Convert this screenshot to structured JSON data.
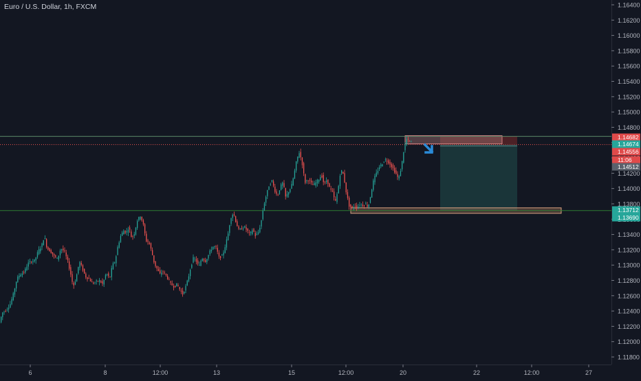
{
  "chart_data": {
    "type": "candlestick",
    "title": "Euro / U.S. Dollar, 1h, FXCM",
    "x_tick_labels": [
      "6",
      "8",
      "12:00",
      "13",
      "15",
      "12:00",
      "20",
      "22",
      "12:00",
      "27"
    ],
    "y_tick_labels": [
      "1.16400",
      "1.16200",
      "1.16000",
      "1.15800",
      "1.15600",
      "1.15400",
      "1.15200",
      "1.15000",
      "1.14800",
      "1.14600",
      "1.14400",
      "1.14200",
      "1.14000",
      "1.13800",
      "1.13600",
      "1.13400",
      "1.13200",
      "1.13000",
      "1.12800",
      "1.12600",
      "1.12400",
      "1.12200",
      "1.12000",
      "1.11800"
    ],
    "ylim": [
      1.1172,
      1.1646
    ],
    "grid": false,
    "price_path": [
      [
        0,
        1.1222
      ],
      [
        5,
        1.1238
      ],
      [
        10,
        1.1241
      ],
      [
        16,
        1.1248
      ],
      [
        21,
        1.1262
      ],
      [
        26,
        1.1282
      ],
      [
        31,
        1.1288
      ],
      [
        37,
        1.1291
      ],
      [
        42,
        1.1302
      ],
      [
        47,
        1.1305
      ],
      [
        52,
        1.1306
      ],
      [
        57,
        1.1318
      ],
      [
        62,
        1.1325
      ],
      [
        66,
        1.1338
      ],
      [
        70,
        1.1322
      ],
      [
        75,
        1.1318
      ],
      [
        80,
        1.1312
      ],
      [
        85,
        1.1308
      ],
      [
        90,
        1.1322
      ],
      [
        95,
        1.1318
      ],
      [
        100,
        1.1305
      ],
      [
        104,
        1.129
      ],
      [
        108,
        1.1272
      ],
      [
        112,
        1.1282
      ],
      [
        117,
        1.1305
      ],
      [
        121,
        1.1296
      ],
      [
        126,
        1.1285
      ],
      [
        131,
        1.1282
      ],
      [
        136,
        1.1276
      ],
      [
        141,
        1.1278
      ],
      [
        146,
        1.128
      ],
      [
        151,
        1.1275
      ],
      [
        156,
        1.129
      ],
      [
        161,
        1.1282
      ],
      [
        165,
        1.13
      ],
      [
        169,
        1.1305
      ],
      [
        173,
        1.1325
      ],
      [
        177,
        1.1338
      ],
      [
        181,
        1.1345
      ],
      [
        185,
        1.1342
      ],
      [
        189,
        1.135
      ],
      [
        193,
        1.1335
      ],
      [
        197,
        1.1342
      ],
      [
        201,
        1.1358
      ],
      [
        206,
        1.1365
      ],
      [
        210,
        1.1352
      ],
      [
        214,
        1.1332
      ],
      [
        218,
        1.133
      ],
      [
        222,
        1.1318
      ],
      [
        226,
        1.1302
      ],
      [
        230,
        1.1295
      ],
      [
        234,
        1.1288
      ],
      [
        238,
        1.1292
      ],
      [
        242,
        1.1288
      ],
      [
        246,
        1.1282
      ],
      [
        250,
        1.1275
      ],
      [
        255,
        1.1272
      ],
      [
        259,
        1.1275
      ],
      [
        263,
        1.1268
      ],
      [
        267,
        1.1262
      ],
      [
        271,
        1.127
      ],
      [
        275,
        1.1282
      ],
      [
        279,
        1.1298
      ],
      [
        283,
        1.131
      ],
      [
        287,
        1.1305
      ],
      [
        291,
        1.1298
      ],
      [
        295,
        1.131
      ],
      [
        300,
        1.1305
      ],
      [
        304,
        1.1312
      ],
      [
        308,
        1.132
      ],
      [
        312,
        1.1325
      ],
      [
        316,
        1.1322
      ],
      [
        320,
        1.131
      ],
      [
        325,
        1.1312
      ],
      [
        329,
        1.1325
      ],
      [
        333,
        1.134
      ],
      [
        337,
        1.1362
      ],
      [
        341,
        1.1368
      ],
      [
        345,
        1.1355
      ],
      [
        349,
        1.1345
      ],
      [
        353,
        1.1348
      ],
      [
        357,
        1.135
      ],
      [
        361,
        1.1345
      ],
      [
        365,
        1.134
      ],
      [
        369,
        1.1347
      ],
      [
        373,
        1.1338
      ],
      [
        377,
        1.1342
      ],
      [
        381,
        1.1355
      ],
      [
        385,
        1.1378
      ],
      [
        389,
        1.1392
      ],
      [
        393,
        1.1405
      ],
      [
        397,
        1.141
      ],
      [
        401,
        1.1398
      ],
      [
        405,
        1.139
      ],
      [
        409,
        1.1402
      ],
      [
        413,
        1.1408
      ],
      [
        417,
        1.1388
      ],
      [
        421,
        1.1396
      ],
      [
        425,
        1.1402
      ],
      [
        429,
        1.1418
      ],
      [
        433,
        1.1438
      ],
      [
        437,
        1.1448
      ],
      [
        441,
        1.1432
      ],
      [
        445,
        1.1408
      ],
      [
        449,
        1.1412
      ],
      [
        453,
        1.1408
      ],
      [
        457,
        1.1404
      ],
      [
        461,
        1.1408
      ],
      [
        465,
        1.1412
      ],
      [
        469,
        1.1418
      ],
      [
        473,
        1.1405
      ],
      [
        477,
        1.1412
      ],
      [
        481,
        1.14
      ],
      [
        485,
        1.1395
      ],
      [
        489,
        1.1382
      ],
      [
        493,
        1.1398
      ],
      [
        497,
        1.1425
      ],
      [
        501,
        1.1418
      ],
      [
        505,
        1.1395
      ],
      [
        509,
        1.1378
      ],
      [
        513,
        1.1374
      ],
      [
        517,
        1.1378
      ],
      [
        521,
        1.1375
      ],
      [
        525,
        1.138
      ],
      [
        529,
        1.1378
      ],
      [
        533,
        1.138
      ],
      [
        537,
        1.1376
      ],
      [
        541,
        1.1394
      ],
      [
        545,
        1.1412
      ],
      [
        549,
        1.142
      ],
      [
        553,
        1.1428
      ],
      [
        557,
        1.1432
      ],
      [
        561,
        1.1438
      ],
      [
        565,
        1.1436
      ],
      [
        569,
        1.1432
      ],
      [
        573,
        1.1426
      ],
      [
        577,
        1.142
      ],
      [
        581,
        1.1412
      ],
      [
        585,
        1.1428
      ],
      [
        589,
        1.1452
      ],
      [
        593,
        1.1465
      ],
      [
        597,
        1.1461
      ]
    ],
    "annotations": {
      "resistance_line_price": 1.14682,
      "current_price_line": 1.14574,
      "support_line_price": 1.13712,
      "short_position": {
        "entry": 1.14574,
        "stop": 1.14682,
        "target": 1.13712,
        "direction": "short"
      },
      "price_labels": [
        {
          "text": "1.14682",
          "color": "#e04a4a"
        },
        {
          "text": "1.14674",
          "color": "#26a69a"
        },
        {
          "text": "1.14556",
          "color": "#e04a4a"
        },
        {
          "text": "11:06",
          "color": "#e04a4a"
        },
        {
          "text": "1.14512",
          "color": "#5a606b"
        },
        {
          "text": "1.13712",
          "color": "#26a69a"
        },
        {
          "text": "1.13690",
          "color": "#26a69a"
        }
      ]
    }
  },
  "colors": {
    "background": "#131722",
    "up": "#26a69a",
    "down": "#ef5350",
    "axis_text": "#b2b5be",
    "line_resistance": "#5c8a6a",
    "line_support": "#2e7d32",
    "current_dotted": "#ef5350",
    "arrow": "#2a8bd8"
  }
}
